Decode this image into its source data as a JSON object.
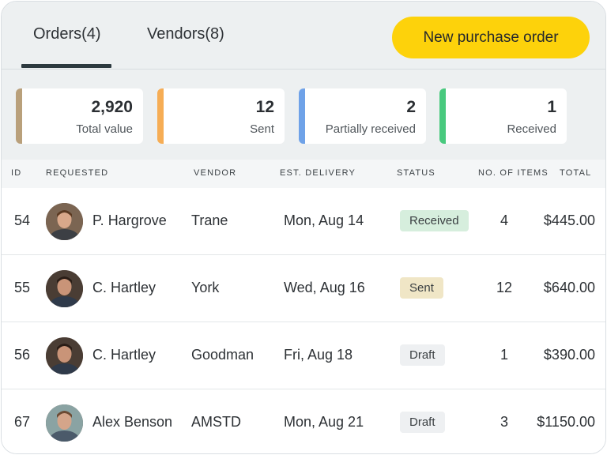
{
  "tabs": {
    "orders": "Orders(4)",
    "vendors": "Vendors(8)"
  },
  "actions": {
    "new_purchase_order": "New purchase order"
  },
  "stats": [
    {
      "value": "2,920",
      "label": "Total value",
      "color": "#b9a07b"
    },
    {
      "value": "12",
      "label": "Sent",
      "color": "#f6ad55"
    },
    {
      "value": "2",
      "label": "Partially received",
      "color": "#6fa2e8"
    },
    {
      "value": "1",
      "label": "Received",
      "color": "#48c97e"
    }
  ],
  "table": {
    "headers": {
      "id": "ID",
      "requested": "REQUESTED",
      "vendor": "VENDOR",
      "est_delivery": "EST. DELIVERY",
      "status": "STATUS",
      "items": "NO. OF ITEMS",
      "total": "TOTAL"
    },
    "rows": [
      {
        "id": "54",
        "requested": "P. Hargrove",
        "vendor": "Trane",
        "est_delivery": "Mon, Aug 14",
        "status": "Received",
        "status_color": "#d6eedd",
        "items": "4",
        "total": "$445.00"
      },
      {
        "id": "55",
        "requested": "C. Hartley",
        "vendor": "York",
        "est_delivery": "Wed, Aug 16",
        "status": "Sent",
        "status_color": "#f0e6c6",
        "items": "12",
        "total": "$640.00"
      },
      {
        "id": "56",
        "requested": "C. Hartley",
        "vendor": "Goodman",
        "est_delivery": "Fri, Aug 18",
        "status": "Draft",
        "status_color": "#eef0f2",
        "items": "1",
        "total": "$390.00"
      },
      {
        "id": "67",
        "requested": "Alex Benson",
        "vendor": "AMSTD",
        "est_delivery": "Mon, Aug 21",
        "status": "Draft",
        "status_color": "#eef0f2",
        "items": "3",
        "total": "$1150.00"
      }
    ]
  }
}
